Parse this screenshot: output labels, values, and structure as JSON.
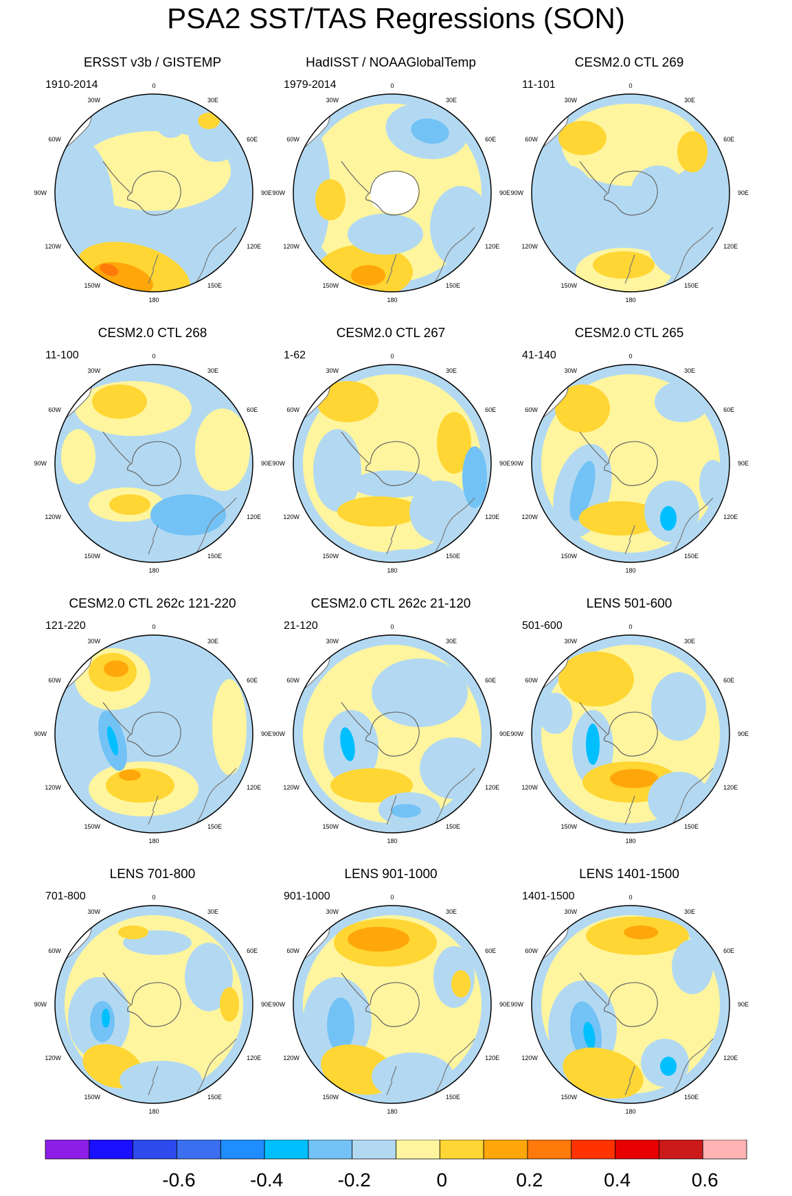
{
  "title": "PSA2 SST/TAS Regressions (SON)",
  "map_labels": {
    "lon": [
      "0",
      "30E",
      "60E",
      "90E",
      "120E",
      "150E",
      "180",
      "150W",
      "120W",
      "90W",
      "60W",
      "30W"
    ]
  },
  "panels": [
    {
      "title": "ERSST v3b / GISTEMP",
      "years": "1910-2014",
      "variant": 0
    },
    {
      "title": "HadISST / NOAAGlobalTemp",
      "years": "1979-2014",
      "variant": 1
    },
    {
      "title": "CESM2.0 CTL 269",
      "years": "11-101",
      "variant": 2
    },
    {
      "title": "CESM2.0 CTL 268",
      "years": "11-100",
      "variant": 3
    },
    {
      "title": "CESM2.0 CTL 267",
      "years": "1-62",
      "variant": 4
    },
    {
      "title": "CESM2.0 CTL 265",
      "years": "41-140",
      "variant": 5
    },
    {
      "title": "CESM2.0 CTL 262c 121-220",
      "years": "121-220",
      "variant": 6
    },
    {
      "title": "CESM2.0 CTL 262c 21-120",
      "years": "21-120",
      "variant": 7
    },
    {
      "title": "LENS 501-600",
      "years": "501-600",
      "variant": 8
    },
    {
      "title": "LENS 701-800",
      "years": "701-800",
      "variant": 9
    },
    {
      "title": "LENS 901-1000",
      "years": "901-1000",
      "variant": 10
    },
    {
      "title": "LENS 1401-1500",
      "years": "1401-1500",
      "variant": 11
    }
  ],
  "colorbar": {
    "colors": [
      "#8c1ee6",
      "#1a0fff",
      "#2d4aed",
      "#3b6ff0",
      "#1f8cff",
      "#00bfff",
      "#73c2f5",
      "#b3d9f2",
      "#fff59e",
      "#ffd633",
      "#ffa60a",
      "#ff7a0a",
      "#ff3300",
      "#e60000",
      "#cc1a1a",
      "#ffb3b3"
    ],
    "tick_labels": [
      "-0.6",
      "-0.4",
      "-0.2",
      "0",
      "0.2",
      "0.4",
      "0.6"
    ]
  }
}
